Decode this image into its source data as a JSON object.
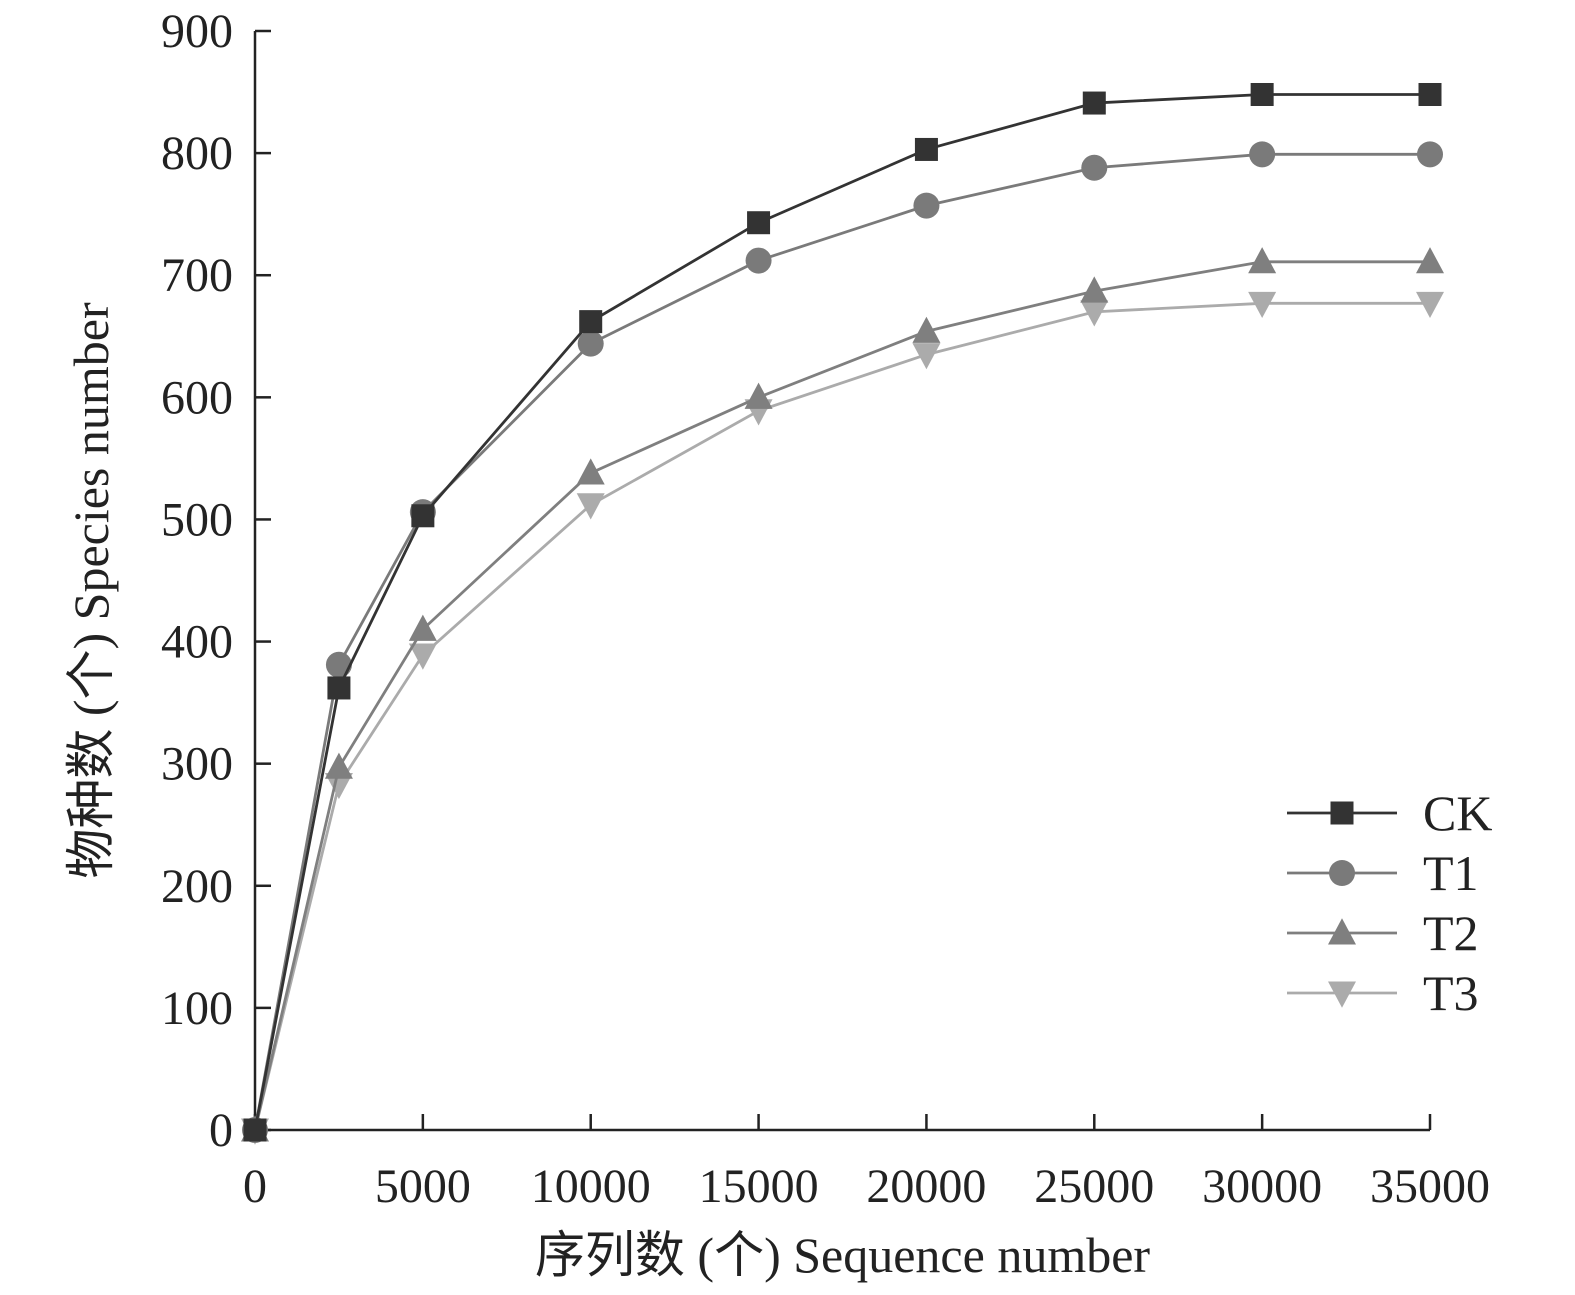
{
  "chart_data": {
    "type": "line",
    "xlabel": "序列数 (个) Sequence number",
    "ylabel": "物种数 (个) Species number",
    "xlim": [
      0,
      35000
    ],
    "ylim": [
      0,
      900
    ],
    "xticks": [
      0,
      5000,
      10000,
      15000,
      20000,
      25000,
      30000,
      35000
    ],
    "xtick_labels": [
      "0",
      "5000",
      "10000",
      "15000",
      "20000",
      "25000",
      "30000",
      "35000"
    ],
    "yticks": [
      0,
      100,
      200,
      300,
      400,
      500,
      600,
      700,
      800,
      900
    ],
    "ytick_labels": [
      "0",
      "100",
      "200",
      "300",
      "400",
      "500",
      "600",
      "700",
      "800",
      "900"
    ],
    "grid": false,
    "legend_position": "right",
    "x": [
      0,
      2500,
      5000,
      10000,
      15000,
      20000,
      25000,
      30000,
      35000
    ],
    "series": [
      {
        "name": "CK",
        "marker": "square",
        "color": "#333333",
        "values": [
          0,
          362,
          503,
          662,
          743,
          803,
          841,
          848,
          848
        ]
      },
      {
        "name": "T1",
        "marker": "circle",
        "color": "#7a7a7a",
        "values": [
          0,
          381,
          506,
          644,
          712,
          757,
          788,
          799,
          799
        ]
      },
      {
        "name": "T2",
        "marker": "triangle-up",
        "color": "#7f7f7f",
        "values": [
          0,
          297,
          410,
          538,
          600,
          654,
          687,
          711,
          711
        ]
      },
      {
        "name": "T3",
        "marker": "triangle-down",
        "color": "#ababab",
        "values": [
          0,
          283,
          389,
          512,
          589,
          635,
          670,
          677,
          677
        ]
      }
    ]
  }
}
